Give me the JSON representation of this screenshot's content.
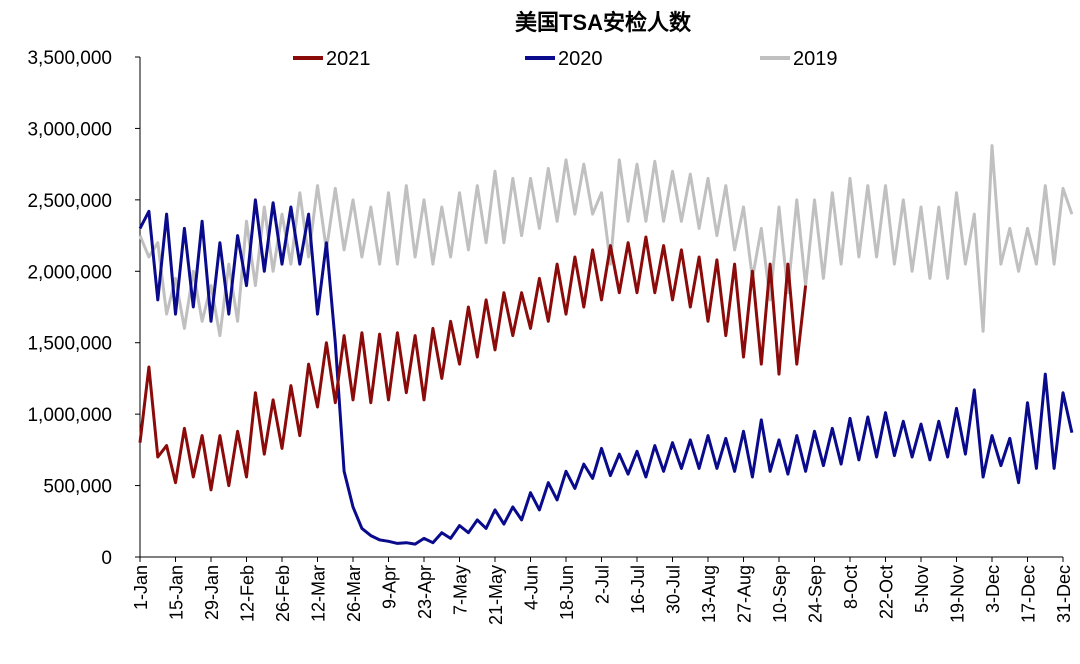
{
  "chart_data": {
    "type": "line",
    "title": "美国TSA安检人数",
    "xlabel": "",
    "ylabel": "",
    "ylim": [
      0,
      3500000
    ],
    "y_ticks": [
      0,
      500000,
      1000000,
      1500000,
      2000000,
      2500000,
      3000000,
      3500000
    ],
    "y_tick_labels": [
      "0",
      "500,000",
      "1,000,000",
      "1,500,000",
      "2,000,000",
      "2,500,000",
      "3,000,000",
      "3,500,000"
    ],
    "x_tick_labels": [
      "1-Jan",
      "15-Jan",
      "29-Jan",
      "12-Feb",
      "26-Feb",
      "12-Mar",
      "26-Mar",
      "9-Apr",
      "23-Apr",
      "7-May",
      "21-May",
      "4-Jun",
      "18-Jun",
      "2-Jul",
      "16-Jul",
      "30-Jul",
      "13-Aug",
      "27-Aug",
      "10-Sep",
      "24-Sep",
      "8-Oct",
      "22-Oct",
      "5-Nov",
      "19-Nov",
      "3-Dec",
      "17-Dec",
      "31-Dec"
    ],
    "x_tick_days": [
      0,
      14,
      28,
      42,
      56,
      70,
      84,
      98,
      112,
      126,
      140,
      154,
      168,
      182,
      196,
      210,
      224,
      238,
      252,
      266,
      280,
      294,
      308,
      322,
      336,
      350,
      364
    ],
    "x_step_days": 3.5,
    "value_unit": "thousands of passengers",
    "grid": false,
    "legend_position": "top",
    "series": [
      {
        "name": "2021",
        "color": "#8b0a0a",
        "values": [
          800,
          1330,
          700,
          780,
          520,
          900,
          560,
          850,
          470,
          850,
          500,
          880,
          560,
          1150,
          720,
          1100,
          760,
          1200,
          850,
          1350,
          1050,
          1500,
          1080,
          1550,
          1100,
          1570,
          1080,
          1560,
          1100,
          1570,
          1150,
          1550,
          1100,
          1600,
          1250,
          1650,
          1350,
          1750,
          1400,
          1800,
          1450,
          1850,
          1550,
          1850,
          1600,
          1950,
          1650,
          2050,
          1700,
          2100,
          1750,
          2150,
          1800,
          2180,
          1850,
          2200,
          1850,
          2240,
          1850,
          2180,
          1800,
          2150,
          1750,
          2100,
          1650,
          2080,
          1550,
          2050,
          1400,
          2000,
          1350,
          2050,
          1280,
          2050,
          1350,
          1900
        ]
      },
      {
        "name": "2020",
        "color": "#0a0a8c",
        "values": [
          2300,
          2420,
          1800,
          2400,
          1700,
          2300,
          1750,
          2350,
          1650,
          2200,
          1700,
          2250,
          1900,
          2500,
          2000,
          2480,
          2050,
          2450,
          2050,
          2400,
          1700,
          2200,
          1500,
          600,
          350,
          200,
          150,
          120,
          110,
          95,
          100,
          90,
          130,
          100,
          170,
          130,
          220,
          170,
          260,
          200,
          330,
          230,
          350,
          260,
          450,
          330,
          520,
          400,
          600,
          480,
          650,
          550,
          760,
          570,
          720,
          580,
          740,
          560,
          780,
          600,
          800,
          620,
          820,
          620,
          850,
          620,
          830,
          600,
          880,
          560,
          960,
          600,
          820,
          580,
          850,
          600,
          880,
          640,
          900,
          650,
          970,
          680,
          980,
          700,
          1010,
          710,
          950,
          700,
          930,
          680,
          950,
          700,
          1040,
          720,
          1170,
          560,
          850,
          640,
          830,
          520,
          1080,
          620,
          1280,
          620,
          1150,
          870
        ]
      },
      {
        "name": "2019",
        "color": "#c0c0c0",
        "values": [
          2250,
          2100,
          2200,
          1700,
          1950,
          1600,
          2000,
          1650,
          1900,
          1550,
          2050,
          1650,
          2350,
          1900,
          2450,
          2000,
          2400,
          2050,
          2550,
          2100,
          2600,
          2150,
          2580,
          2150,
          2500,
          2100,
          2450,
          2050,
          2550,
          2050,
          2600,
          2100,
          2500,
          2050,
          2450,
          2100,
          2550,
          2150,
          2600,
          2200,
          2700,
          2200,
          2650,
          2250,
          2650,
          2300,
          2720,
          2350,
          2780,
          2400,
          2750,
          2400,
          2550,
          2050,
          2780,
          2350,
          2750,
          2350,
          2770,
          2350,
          2700,
          2350,
          2680,
          2300,
          2650,
          2250,
          2600,
          2150,
          2450,
          1950,
          2300,
          1800,
          2450,
          1850,
          2500,
          1900,
          2500,
          1950,
          2550,
          2050,
          2650,
          2100,
          2600,
          2100,
          2600,
          2050,
          2500,
          2000,
          2450,
          1950,
          2450,
          1950,
          2550,
          2050,
          2400,
          1580,
          2880,
          2050,
          2300,
          2000,
          2300,
          2050,
          2600,
          2050,
          2580,
          2400
        ]
      }
    ]
  }
}
